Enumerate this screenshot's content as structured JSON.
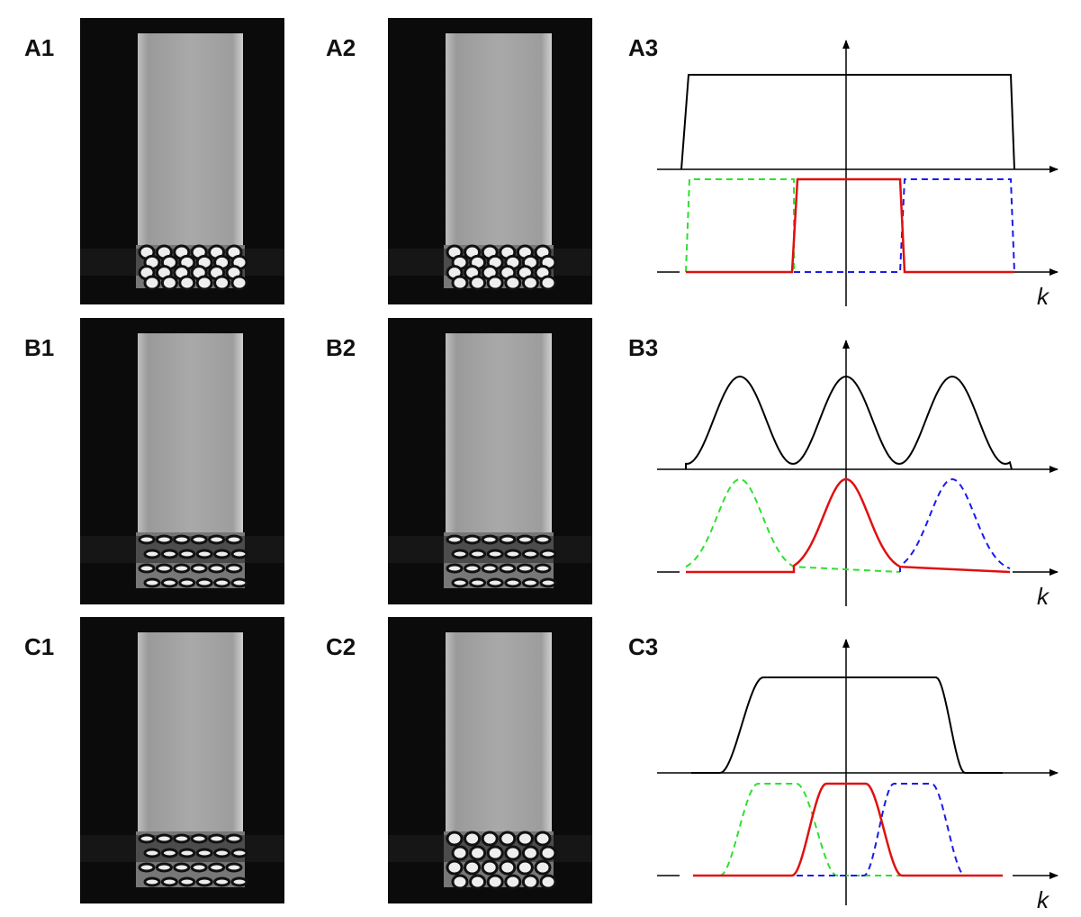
{
  "panels": [
    {
      "label": "A1"
    },
    {
      "label": "A2"
    },
    {
      "label": "A3"
    },
    {
      "label": "B1"
    },
    {
      "label": "B2"
    },
    {
      "label": "B3"
    },
    {
      "label": "C1"
    },
    {
      "label": "C2"
    },
    {
      "label": "C3"
    }
  ],
  "axis_label": "k"
}
